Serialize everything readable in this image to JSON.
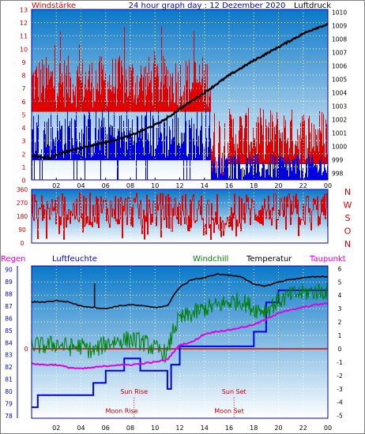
{
  "header": {
    "left_label": "Windstärke",
    "title": "24 hour graph day : 12 Dezember 2020",
    "right_label": "Luftdruck"
  },
  "colors": {
    "red": "#e00000",
    "blue": "#0000e0",
    "green": "#008000",
    "magenta": "#e000e0",
    "black": "#000000",
    "sky_top": "#0a78c8",
    "sky_bottom": "#ffffff",
    "border": "#0000c0"
  },
  "chart_data": [
    {
      "type": "bar",
      "name": "wind",
      "left_axis_label": "Windstärke",
      "right_axis_label": "Luftdruck",
      "x_ticks": [
        "02",
        "04",
        "06",
        "08",
        "10",
        "12",
        "14",
        "16",
        "18",
        "20",
        "22",
        "00"
      ],
      "y_left_ticks": [
        "0",
        "1",
        "2",
        "3",
        "4",
        "5",
        "6",
        "7",
        "8",
        "9",
        "10",
        "11",
        "12",
        "13"
      ],
      "y_right_ticks": [
        "998",
        "999",
        "1000",
        "1001",
        "1002",
        "1003",
        "1004",
        "1005",
        "1006",
        "1007",
        "1008",
        "1009",
        "1010"
      ],
      "ylim_left": [
        0,
        13
      ],
      "ylim_right": [
        997.5,
        1010.2
      ],
      "gust_segments": [
        {
          "from": 0,
          "to": 14.5,
          "low": 5.5,
          "high": 9.5
        },
        {
          "from": 14.5,
          "to": 15.7,
          "low": 0,
          "high": 5.5
        },
        {
          "from": 15.7,
          "to": 24,
          "low": 1.5,
          "high": 5.5
        }
      ],
      "avg_segments": [
        {
          "from": 0,
          "to": 14.5,
          "low": 1.5,
          "high": 5.5
        },
        {
          "from": 14.5,
          "to": 15.7,
          "low": 0,
          "high": 2
        },
        {
          "from": 15.7,
          "to": 24,
          "low": 0,
          "high": 2
        }
      ],
      "pressure": {
        "x": [
          0,
          1,
          1.5,
          2,
          4,
          6,
          8,
          10,
          11,
          12,
          14,
          16,
          18,
          20,
          22,
          23,
          24
        ],
        "y": [
          999.3,
          999.2,
          999.1,
          999.4,
          999.9,
          1000.3,
          1000.8,
          1001.6,
          1002.1,
          1002.8,
          1004.0,
          1005.3,
          1006.4,
          1007.4,
          1008.4,
          1008.8,
          1009.1
        ]
      }
    },
    {
      "type": "bar",
      "name": "wind_direction",
      "y_ticks": [
        "0",
        "90",
        "180",
        "270",
        "360"
      ],
      "ylim": [
        0,
        360
      ],
      "compass_labels": [
        "N",
        "W",
        "S",
        "O",
        "N"
      ]
    },
    {
      "type": "line",
      "name": "weather",
      "legend": [
        "Regen",
        "Luftfeuchte",
        "Windchill",
        "Temperatur",
        "Taupunkt"
      ],
      "x_ticks": [
        "02",
        "04",
        "06",
        "08",
        "10",
        "12",
        "14",
        "16",
        "18",
        "20",
        "22",
        "00"
      ],
      "y_left_ticks": [
        "78",
        "79",
        "80",
        "81",
        "82",
        "83",
        "84",
        "85",
        "86",
        "87",
        "88",
        "89",
        "90"
      ],
      "y_right_ticks": [
        "-5",
        "-4",
        "-3",
        "-2",
        "-1",
        "0",
        "1",
        "2",
        "3",
        "4",
        "5",
        "6"
      ],
      "ylim_left": [
        77.8,
        90.3
      ],
      "ylim_right": [
        -5.2,
        6.2
      ],
      "rain_tick": "0",
      "temperature": {
        "x": [
          0,
          1,
          2,
          3,
          4,
          5,
          6,
          7,
          8,
          9,
          10,
          11,
          11.5,
          12,
          13,
          14,
          15,
          16,
          17,
          18,
          19,
          20,
          21,
          22,
          23,
          24
        ],
        "y": [
          3.5,
          3.5,
          3.6,
          3.5,
          3.2,
          3.1,
          3.0,
          3.2,
          3.3,
          3.2,
          3.1,
          3.2,
          4.0,
          4.6,
          5.2,
          5.3,
          5.6,
          5.5,
          5.4,
          4.8,
          4.7,
          5.0,
          5.2,
          5.3,
          5.4,
          5.4
        ]
      },
      "windchill": {
        "x": [
          0,
          1,
          2,
          3,
          4,
          5,
          6,
          7,
          8,
          9,
          10,
          11,
          11.5,
          12,
          13,
          14,
          15,
          16,
          17,
          18,
          19,
          20,
          21,
          22,
          23,
          24
        ],
        "y": [
          0.3,
          0.2,
          0.4,
          0.1,
          0.2,
          -0.2,
          0.4,
          0.6,
          0.7,
          0.5,
          0.0,
          -0.4,
          1.5,
          2.2,
          2.6,
          3.0,
          3.2,
          3.5,
          3.6,
          3.0,
          2.9,
          3.6,
          4.0,
          4.2,
          4.3,
          4.3
        ]
      },
      "dewpoint": {
        "x": [
          0,
          1,
          2,
          3,
          4,
          5,
          6,
          7,
          8,
          9,
          10,
          11,
          12,
          13,
          14,
          15,
          16,
          17,
          18,
          19,
          20,
          21,
          22,
          23,
          24
        ],
        "y": [
          -1.1,
          -1.2,
          -1.2,
          -1.4,
          -1.5,
          -1.4,
          -1.3,
          -1.2,
          -1.2,
          -1.1,
          -1.0,
          -0.8,
          0.3,
          0.5,
          1.1,
          1.3,
          1.4,
          1.6,
          1.8,
          2.2,
          2.7,
          2.9,
          3.1,
          3.3,
          3.4
        ]
      },
      "humidity_steps": {
        "x": [
          0,
          0.5,
          0.5,
          5,
          5,
          6,
          6,
          7.5,
          7.5,
          8.8,
          8.8,
          11,
          11,
          11.3,
          11.3,
          12,
          12,
          18,
          18,
          19,
          19,
          20,
          20,
          24
        ],
        "y": [
          78.7,
          78.7,
          79.7,
          79.7,
          80.7,
          80.7,
          81.7,
          81.7,
          82.7,
          82.7,
          81.7,
          81.7,
          80.2,
          80.2,
          82.2,
          82.2,
          83.7,
          83.7,
          84.9,
          84.9,
          87.3,
          87.3,
          88.3,
          88.3
        ]
      },
      "annotations": [
        {
          "label": "Sun Rise",
          "x": 8.3,
          "y": 80.0
        },
        {
          "label": "Sun Set",
          "x": 16.4,
          "y": 80.0
        },
        {
          "label": "Moon Rise",
          "x": 7.3,
          "y": 78.4
        },
        {
          "label": "Moon Set",
          "x": 16.0,
          "y": 78.4
        }
      ]
    }
  ]
}
